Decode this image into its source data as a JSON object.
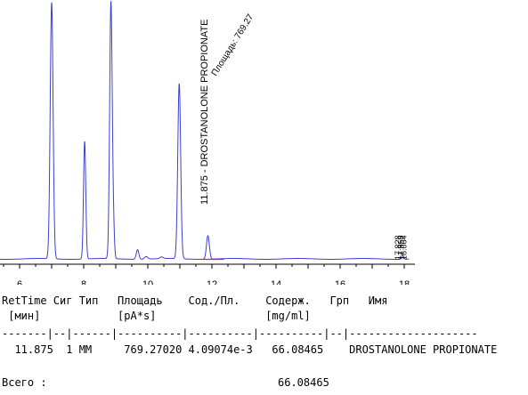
{
  "chart_data": {
    "type": "line",
    "x_ticks": [
      6,
      8,
      10,
      12,
      14,
      16,
      18
    ],
    "xlim": [
      4.6,
      18.15
    ],
    "baseline": 0.0,
    "peaks": [
      {
        "rt": 7.0,
        "height": 1.2,
        "width": 0.045
      },
      {
        "rt": 8.03,
        "height": 0.55,
        "width": 0.035
      },
      {
        "rt": 8.85,
        "height": 1.2,
        "width": 0.04
      },
      {
        "rt": 8.93,
        "height": 0.12,
        "width": 0.03
      },
      {
        "rt": 9.68,
        "height": 0.045,
        "width": 0.04
      },
      {
        "rt": 9.95,
        "height": 0.012,
        "width": 0.05
      },
      {
        "rt": 10.43,
        "height": 0.008,
        "width": 0.05
      },
      {
        "rt": 10.98,
        "height": 0.82,
        "width": 0.045
      },
      {
        "rt": 11.875,
        "height": 0.11,
        "width": 0.045
      },
      {
        "rt": 17.95,
        "height": 0.02,
        "width": 0.03
      }
    ],
    "annotations": [
      {
        "rt": 11.875,
        "label": "11.875 - DROSTANOLONE PROPIONATE",
        "area_label": "Площадь: 769.27"
      }
    ],
    "crowded_labels": [
      "17.828",
      "17.950",
      "18.064"
    ],
    "line_color": "#3b3fd1",
    "integration_color": "#d11a7a"
  },
  "report": {
    "header1": "RetTime Сиг Тип   Площадь    Сод./Пл.    Содерж.   Грп   Имя",
    "header2": " [мин]            [pA*s]                 [mg/ml]",
    "divider": "-------|--|------|----------|----------|----------|--|--------------------",
    "row": "  11.875  1 MM     769.27020 4.09074e-3   66.08465    DROSTANOLONE PROPIONATE",
    "total_label": "Всего :",
    "total_value": "66.08465"
  }
}
